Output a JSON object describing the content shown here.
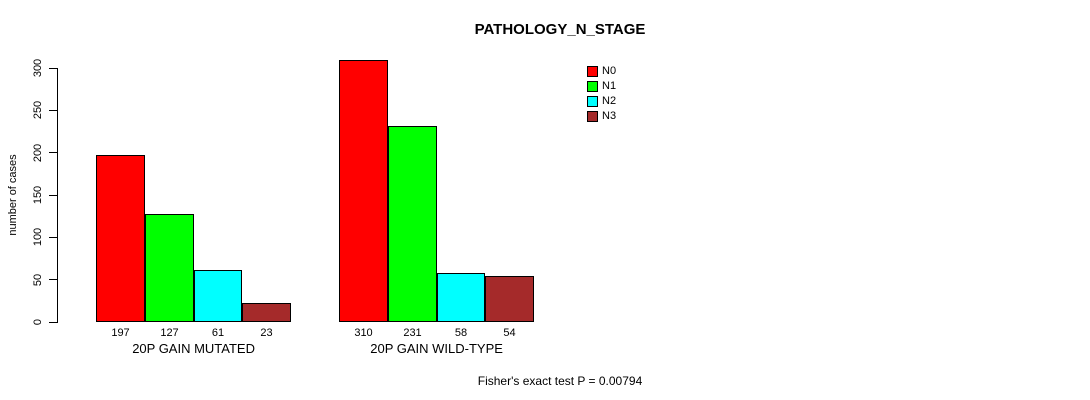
{
  "chart_data": {
    "type": "bar",
    "title": "PATHOLOGY_N_STAGE",
    "ylabel": "number of cases",
    "ylim": [
      0,
      310
    ],
    "yticks": [
      0,
      50,
      100,
      150,
      200,
      250,
      300
    ],
    "grid": false,
    "legend_position": "top-right",
    "categories": [
      "20P GAIN MUTATED",
      "20P GAIN WILD-TYPE"
    ],
    "series": [
      {
        "name": "N0",
        "color": "#ff0000",
        "values": [
          197,
          310
        ]
      },
      {
        "name": "N1",
        "color": "#00ff00",
        "values": [
          127,
          231
        ]
      },
      {
        "name": "N2",
        "color": "#00ffff",
        "values": [
          61,
          58
        ]
      },
      {
        "name": "N3",
        "color": "#a52a2a",
        "values": [
          23,
          54
        ]
      }
    ],
    "footnote": "Fisher's exact test P = 0.00794"
  }
}
